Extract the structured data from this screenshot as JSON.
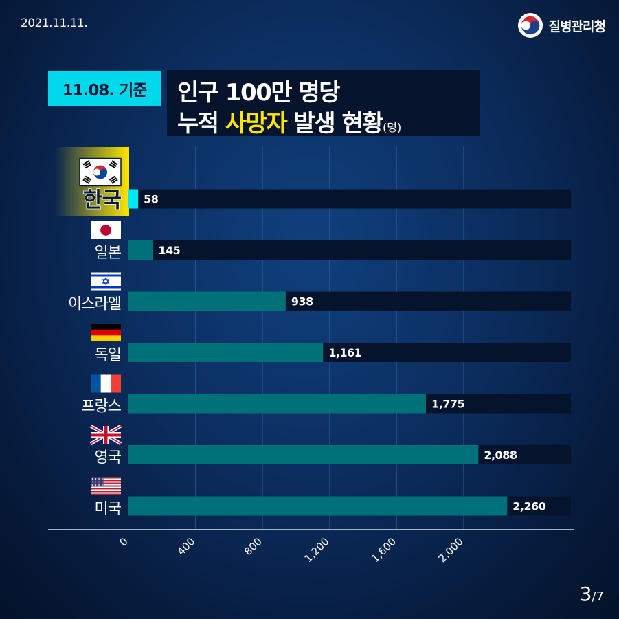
{
  "header": {
    "date": "2021.11.11.",
    "agency": "질병관리청",
    "tag": "11.08. 기준",
    "title_line1": "인구 100만 명당",
    "title_line2_pre": "누적 ",
    "title_line2_highlight": "사망자",
    "title_line2_post": " 발생 현황",
    "title_unit": "(명)"
  },
  "page": {
    "current": "3",
    "total": "/7"
  },
  "colors": {
    "accent": "#00d8ec",
    "bar": "#007178",
    "highlight_bar": "#00e8f5",
    "track": "#05142c",
    "highlight_yellow": "#ffe600"
  },
  "chart_data": {
    "type": "bar",
    "orientation": "horizontal",
    "categories": [
      "한국",
      "일본",
      "이스라엘",
      "독일",
      "프랑스",
      "영국",
      "미국"
    ],
    "flags": [
      "korea-flag",
      "japan-flag",
      "israel-flag",
      "germany-flag",
      "france-flag",
      "uk-flag",
      "usa-flag"
    ],
    "values": [
      58,
      145,
      938,
      1161,
      1775,
      2088,
      2260
    ],
    "value_labels": [
      "58",
      "145",
      "938",
      "1,161",
      "1,775",
      "2,088",
      "2,260"
    ],
    "highlighted_category": "한국",
    "xticks": [
      "0",
      "400",
      "800",
      "1,200",
      "1,600",
      "2,000"
    ],
    "xtick_values": [
      0,
      400,
      800,
      1200,
      1600,
      2000
    ],
    "xlim": [
      0,
      2640
    ],
    "grid": true
  }
}
